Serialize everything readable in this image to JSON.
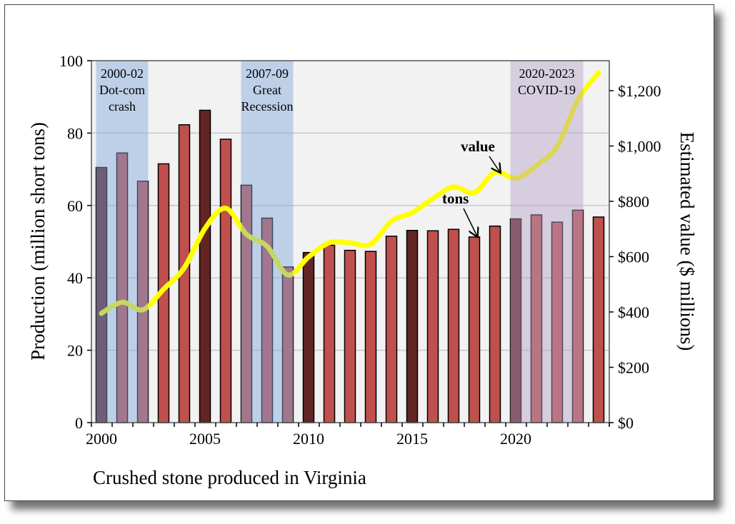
{
  "chart_data": {
    "type": "bar+line",
    "xlabel": "Crushed stone produced in Virginia",
    "ylabel": "Production (million short tons)",
    "y2label": "Estimated value ($ millions)",
    "ylim": [
      0,
      100
    ],
    "y2lim": [
      0,
      1300
    ],
    "yticks": [
      "0",
      "20",
      "40",
      "60",
      "80",
      "100"
    ],
    "y2ticks": [
      "$0",
      "$200",
      "$400",
      "$600",
      "$800",
      "$1,000",
      "$1,200"
    ],
    "xticks": [
      "2000",
      "2005",
      "2010",
      "2015",
      "2020"
    ],
    "grid": true,
    "years": [
      2000,
      2001,
      2002,
      2003,
      2004,
      2005,
      2006,
      2007,
      2008,
      2009,
      2010,
      2011,
      2012,
      2013,
      2014,
      2015,
      2016,
      2017,
      2018,
      2019,
      2020,
      2021,
      2022,
      2023,
      2024
    ],
    "series": [
      {
        "name": "tons",
        "type": "bar",
        "axis": "left",
        "values": [
          70.5,
          74.5,
          66.7,
          71.5,
          82.3,
          86.3,
          78.3,
          65.6,
          56.5,
          43.0,
          47.0,
          49.0,
          47.6,
          47.3,
          51.5,
          53.1,
          53.0,
          53.4,
          51.3,
          54.3,
          56.3,
          57.4,
          55.4,
          58.7,
          56.8
        ]
      },
      {
        "name": "value",
        "type": "line",
        "axis": "right",
        "values": [
          395,
          435,
          408,
          482,
          560,
          702,
          775,
          681,
          637,
          534,
          599,
          650,
          650,
          645,
          728,
          759,
          810,
          852,
          831,
          905,
          883,
          929,
          999,
          1166,
          1265
        ]
      }
    ],
    "bar_colors": {
      "normal": "#c0504d",
      "highlight": "#632523"
    },
    "highlight_years": [
      2000,
      2005,
      2010,
      2015,
      2020
    ],
    "line_color": "#ffff00",
    "annotations": [
      {
        "text": "value",
        "arrow_to_year": 2019
      },
      {
        "text": "tons",
        "arrow_to_year": 2018
      }
    ],
    "shaded_periods": [
      {
        "label_line1": "2000-02",
        "label_line2": "Dot-com",
        "label_line3": "crash",
        "from": 2000,
        "to": 2002,
        "color": "#7ea6dc"
      },
      {
        "label_line1": "2007-09",
        "label_line2": "Great",
        "label_line3": "Recession",
        "from": 2007,
        "to": 2009,
        "color": "#7ea6dc"
      },
      {
        "label_line1": "2020-2023",
        "label_line2": "COVID-19",
        "label_line3": "",
        "from": 2020,
        "to": 2023,
        "color": "#b3a2c7"
      }
    ]
  }
}
